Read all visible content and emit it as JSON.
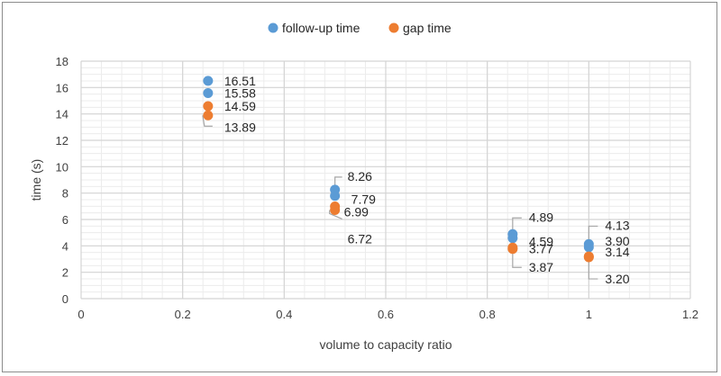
{
  "chart_data": {
    "type": "scatter",
    "title": "",
    "xlabel": "volume to capacity ratio",
    "ylabel": "time (s)",
    "xlim": [
      0,
      1.2
    ],
    "ylim": [
      0,
      18
    ],
    "x_ticks": [
      "0",
      "0.2",
      "0.4",
      "0.6",
      "0.8",
      "1",
      "1.2"
    ],
    "y_ticks": [
      "0",
      "2",
      "4",
      "6",
      "8",
      "10",
      "12",
      "14",
      "16",
      "18"
    ],
    "grid": true,
    "legend_position": "top",
    "series": [
      {
        "name": "follow-up time",
        "color": "#5B9BD5",
        "points": [
          {
            "x": 0.25,
            "y": 16.51,
            "label": "16.51"
          },
          {
            "x": 0.25,
            "y": 15.58,
            "label": "15.58"
          },
          {
            "x": 0.5,
            "y": 8.26,
            "label": "8.26"
          },
          {
            "x": 0.5,
            "y": 7.79,
            "label": "7.79"
          },
          {
            "x": 0.85,
            "y": 4.89,
            "label": "4.89"
          },
          {
            "x": 0.85,
            "y": 4.59,
            "label": "4.59"
          },
          {
            "x": 1.0,
            "y": 4.13,
            "label": "4.13"
          },
          {
            "x": 1.0,
            "y": 3.9,
            "label": "3.90"
          }
        ]
      },
      {
        "name": "gap time",
        "color": "#ED7D31",
        "points": [
          {
            "x": 0.25,
            "y": 14.59,
            "label": "14.59"
          },
          {
            "x": 0.25,
            "y": 13.89,
            "label": "13.89"
          },
          {
            "x": 0.5,
            "y": 6.99,
            "label": "6.99"
          },
          {
            "x": 0.5,
            "y": 6.72,
            "label": "6.72"
          },
          {
            "x": 0.85,
            "y": 3.77,
            "label": "3.77"
          },
          {
            "x": 0.85,
            "y": 3.87,
            "label": "3.87"
          },
          {
            "x": 1.0,
            "y": 3.14,
            "label": "3.14"
          },
          {
            "x": 1.0,
            "y": 3.2,
            "label": "3.20"
          }
        ]
      }
    ]
  }
}
